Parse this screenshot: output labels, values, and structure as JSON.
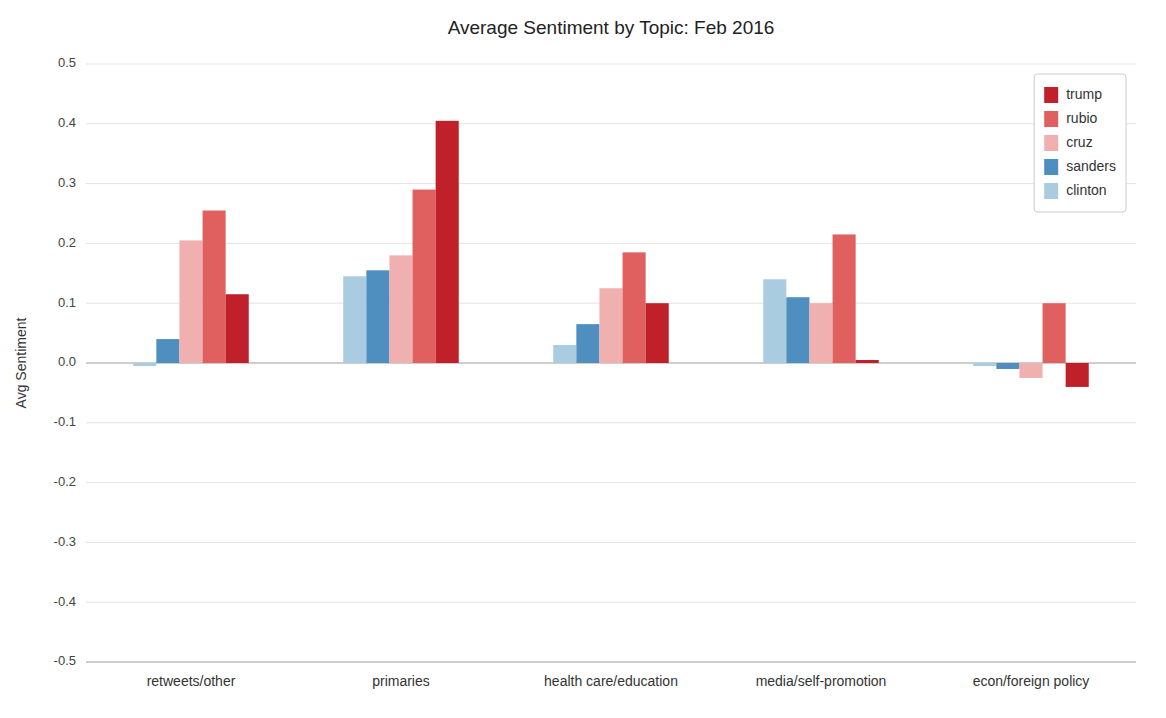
{
  "chart_data": {
    "type": "bar",
    "title": "Average Sentiment by Topic: Feb 2016",
    "ylabel": "Avg Sentiment",
    "categories": [
      "retweets/other",
      "primaries",
      "health care/education",
      "media/self-promotion",
      "econ/foreign policy"
    ],
    "series": [
      {
        "name": "clinton",
        "color": "#aacce0",
        "values": [
          -0.005,
          0.145,
          0.03,
          0.14,
          -0.005
        ]
      },
      {
        "name": "sanders",
        "color": "#4e8fc0",
        "values": [
          0.04,
          0.155,
          0.065,
          0.11,
          -0.01
        ]
      },
      {
        "name": "cruz",
        "color": "#f0b0b0",
        "values": [
          0.205,
          0.18,
          0.125,
          0.1,
          -0.025
        ]
      },
      {
        "name": "rubio",
        "color": "#e06060",
        "values": [
          0.255,
          0.29,
          0.185,
          0.215,
          0.1
        ]
      },
      {
        "name": "trump",
        "color": "#c0202a",
        "values": [
          0.115,
          0.405,
          0.1,
          0.005,
          -0.04
        ]
      }
    ],
    "ylim": [
      -0.5,
      0.5
    ],
    "yticks": [
      -0.5,
      -0.4,
      -0.3,
      -0.2,
      -0.1,
      {
        "value": 0.0,
        "label": "0.0"
      },
      0.1,
      0.2,
      0.3,
      0.4,
      0.5
    ],
    "grid": true,
    "legend": "upper right"
  }
}
